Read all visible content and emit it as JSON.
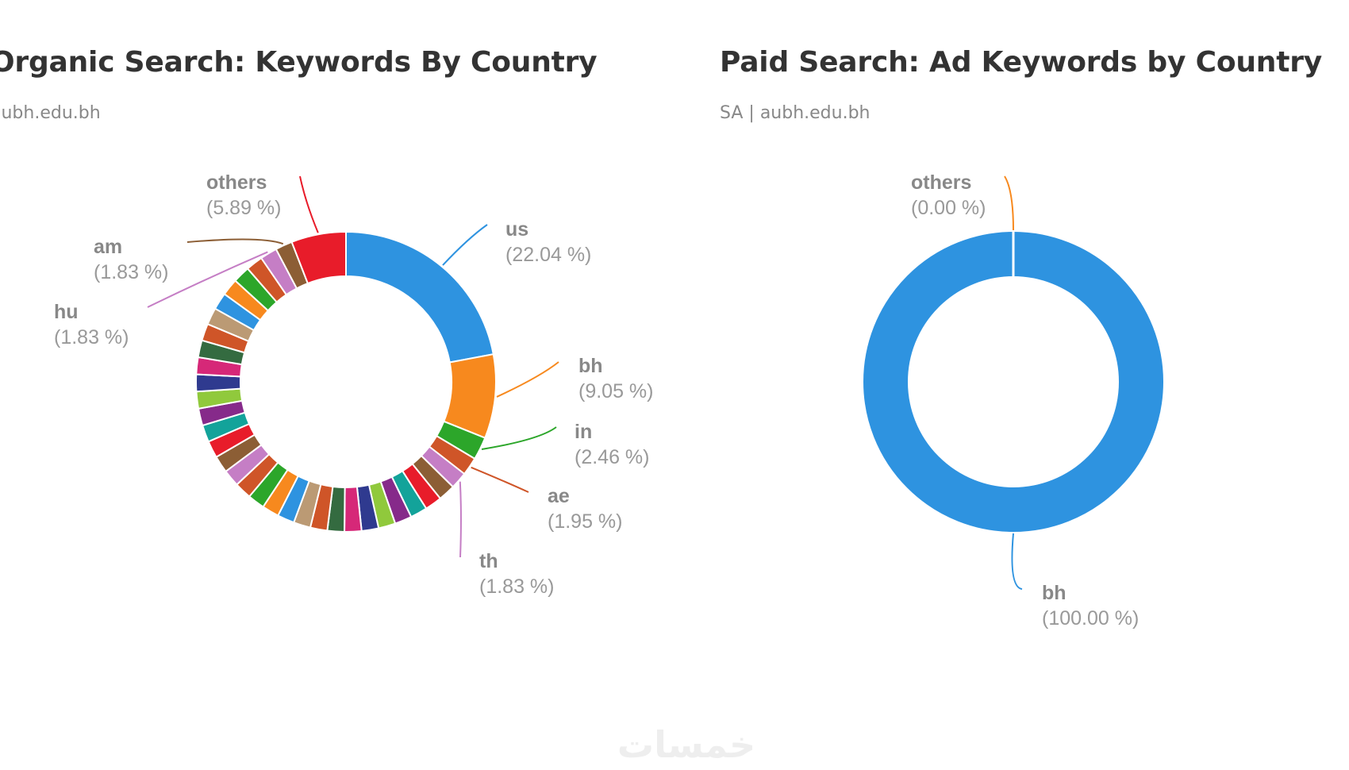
{
  "watermark": {
    "text": "خمسات"
  },
  "chart_data": [
    {
      "type": "pie",
      "style": "donut",
      "title": "Organic Search: Keywords By Country",
      "subtitle": "aubh.edu.bh",
      "labeled_slices": [
        {
          "label": "us",
          "value_text": "(22.04 %)",
          "color": "#2e93e0"
        },
        {
          "label": "bh",
          "value_text": "(9.05 %)",
          "color": "#f7891e"
        },
        {
          "label": "in",
          "value_text": "(2.46 %)",
          "color": "#2ca62a"
        },
        {
          "label": "ae",
          "value_text": "(1.95 %)",
          "color": "#cf5528"
        },
        {
          "label": "th",
          "value_text": "(1.83 %)",
          "color": "#c57ec5"
        },
        {
          "label": "hu",
          "value_text": "(1.83 %)",
          "color": "#c57ec5"
        },
        {
          "label": "am",
          "value_text": "(1.83 %)",
          "color": "#8c5e35"
        },
        {
          "label": "others",
          "value_text": "(5.89 %)",
          "color": "#e81c2a"
        }
      ],
      "slices": [
        {
          "label": "us",
          "value": 22.04,
          "color": "#2e93e0"
        },
        {
          "label": "bh",
          "value": 9.05,
          "color": "#f7891e"
        },
        {
          "label": "in",
          "value": 2.46,
          "color": "#2ca62a"
        },
        {
          "label": "ae",
          "value": 1.95,
          "color": "#cf5528"
        },
        {
          "label": "th",
          "value": 1.83,
          "color": "#c57ec5"
        },
        {
          "label": "",
          "value": 1.83,
          "color": "#8c5e35"
        },
        {
          "label": "",
          "value": 1.83,
          "color": "#e81c2a"
        },
        {
          "label": "",
          "value": 1.83,
          "color": "#13a39a"
        },
        {
          "label": "",
          "value": 1.83,
          "color": "#862a8a"
        },
        {
          "label": "",
          "value": 1.83,
          "color": "#90c93c"
        },
        {
          "label": "",
          "value": 1.83,
          "color": "#2f3a8f"
        },
        {
          "label": "",
          "value": 1.83,
          "color": "#d62878"
        },
        {
          "label": "",
          "value": 1.83,
          "color": "#346b40"
        },
        {
          "label": "",
          "value": 1.83,
          "color": "#cf5528"
        },
        {
          "label": "",
          "value": 1.83,
          "color": "#bb9a74"
        },
        {
          "label": "",
          "value": 1.83,
          "color": "#2e93e0"
        },
        {
          "label": "",
          "value": 1.83,
          "color": "#f7891e"
        },
        {
          "label": "",
          "value": 1.83,
          "color": "#2ca62a"
        },
        {
          "label": "",
          "value": 1.83,
          "color": "#cf5528"
        },
        {
          "label": "",
          "value": 1.83,
          "color": "#c57ec5"
        },
        {
          "label": "",
          "value": 1.83,
          "color": "#8c5e35"
        },
        {
          "label": "",
          "value": 1.83,
          "color": "#e81c2a"
        },
        {
          "label": "",
          "value": 1.83,
          "color": "#13a39a"
        },
        {
          "label": "",
          "value": 1.83,
          "color": "#862a8a"
        },
        {
          "label": "",
          "value": 1.83,
          "color": "#90c93c"
        },
        {
          "label": "",
          "value": 1.83,
          "color": "#2f3a8f"
        },
        {
          "label": "",
          "value": 1.83,
          "color": "#d62878"
        },
        {
          "label": "",
          "value": 1.83,
          "color": "#346b40"
        },
        {
          "label": "",
          "value": 1.83,
          "color": "#cf5528"
        },
        {
          "label": "",
          "value": 1.83,
          "color": "#bb9a74"
        },
        {
          "label": "",
          "value": 1.83,
          "color": "#2e93e0"
        },
        {
          "label": "",
          "value": 1.83,
          "color": "#f7891e"
        },
        {
          "label": "",
          "value": 1.83,
          "color": "#2ca62a"
        },
        {
          "label": "",
          "value": 1.83,
          "color": "#cf5528"
        },
        {
          "label": "hu",
          "value": 1.83,
          "color": "#c57ec5"
        },
        {
          "label": "am",
          "value": 1.83,
          "color": "#8c5e35"
        },
        {
          "label": "others",
          "value": 5.89,
          "color": "#e81c2a"
        }
      ]
    },
    {
      "type": "pie",
      "style": "donut",
      "title": "Paid Search: Ad Keywords by Country",
      "subtitle": "SA | aubh.edu.bh",
      "slices": [
        {
          "label": "bh",
          "value": 100.0,
          "value_text": "(100.00 %)",
          "color": "#2e93e0"
        },
        {
          "label": "others",
          "value": 0.0,
          "value_text": "(0.00 %)",
          "color": "#f7891e"
        }
      ]
    }
  ]
}
